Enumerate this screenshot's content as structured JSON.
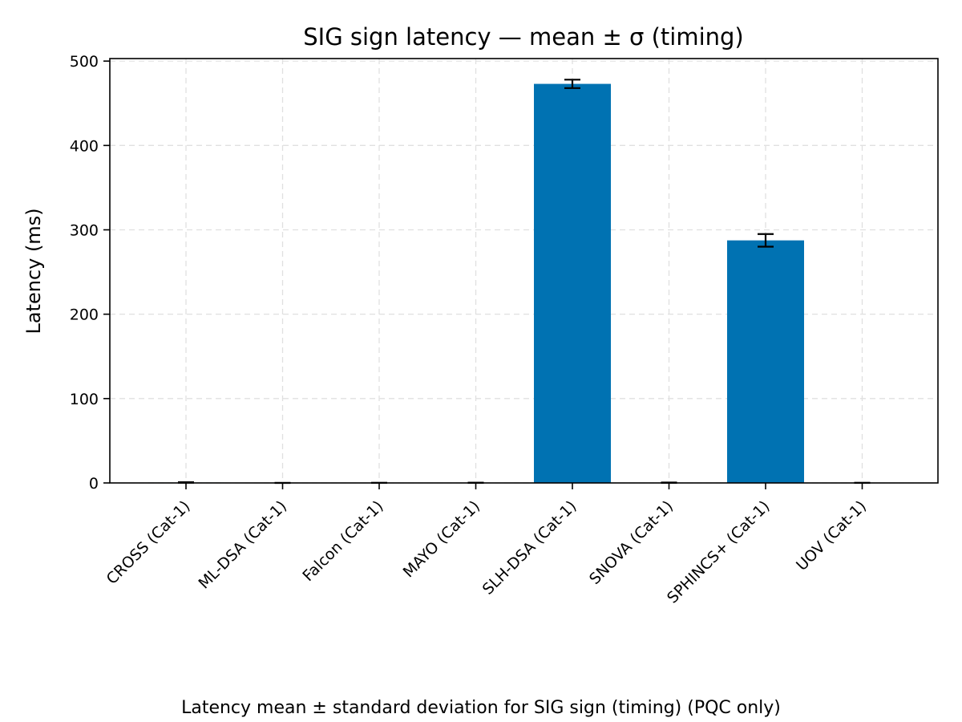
{
  "caption": "Latency mean ± standard deviation for SIG sign (timing) (PQC only)",
  "chart_data": {
    "type": "bar",
    "title": "SIG sign latency — mean ± σ (timing)",
    "xlabel": "",
    "ylabel": "Latency (ms)",
    "categories": [
      "CROSS (Cat-1)",
      "ML-DSA (Cat-1)",
      "Falcon (Cat-1)",
      "MAYO (Cat-1)",
      "SLH-DSA (Cat-1)",
      "SNOVA (Cat-1)",
      "SPHINCS+ (Cat-1)",
      "UOV (Cat-1)"
    ],
    "values": [
      0.5,
      0.05,
      0.1,
      0.2,
      473,
      0.3,
      287.5,
      0.1
    ],
    "errors": [
      0.3,
      0.02,
      0.05,
      0.05,
      5,
      0.2,
      7.5,
      0.05
    ],
    "ylim": [
      0,
      503
    ],
    "yticks": [
      0,
      100,
      200,
      300,
      400,
      500
    ],
    "grid": true,
    "bar_color": "#0072b2"
  }
}
